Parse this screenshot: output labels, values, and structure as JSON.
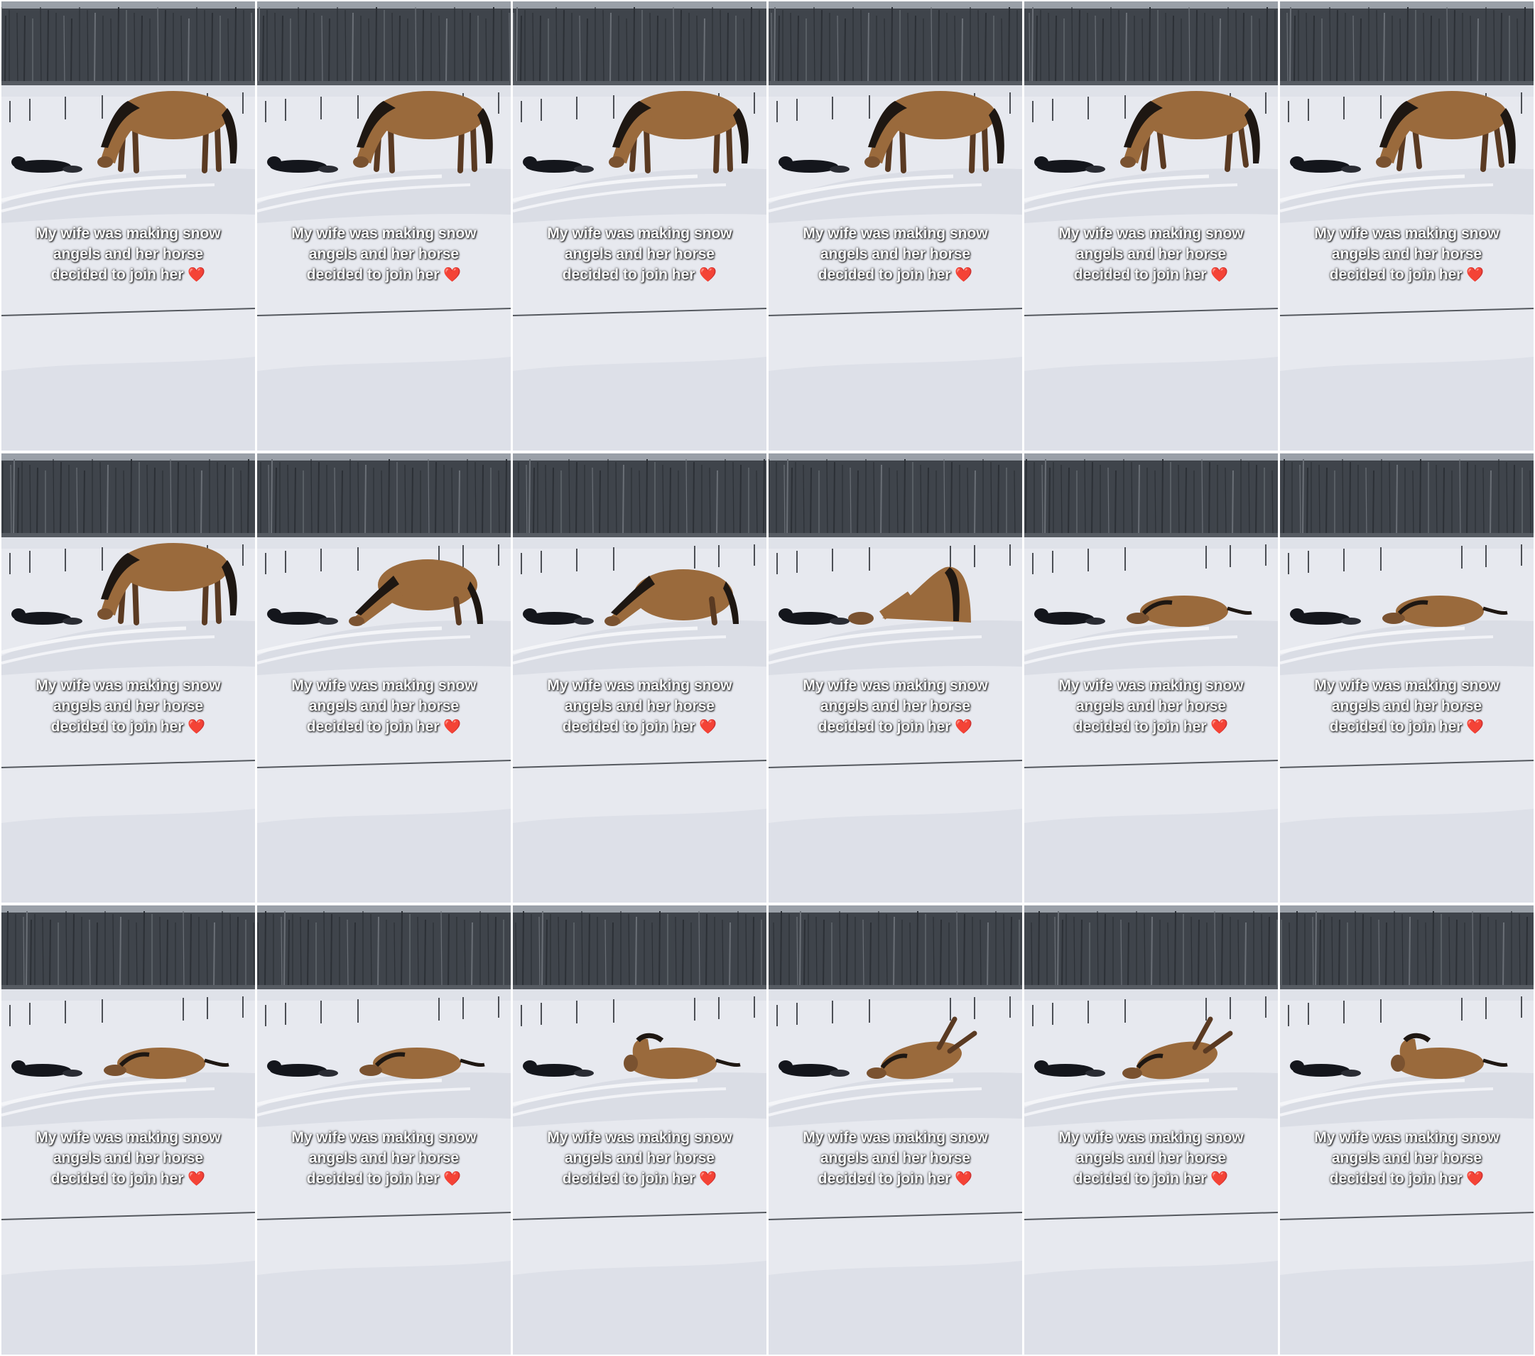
{
  "grid": {
    "rows": 3,
    "columns": 6
  },
  "caption": {
    "text": "My wife was making snow\nangels and her horse\ndecided to join her",
    "emoji": "❤️"
  },
  "colors": {
    "snow": "#e6e8ee",
    "trees": "#3a3f46",
    "horse": "#9a6a3c",
    "mane": "#1e1712",
    "person": "#14161c",
    "heart": "#e0202c"
  },
  "frames": [
    {
      "pose": "standing-sniffing"
    },
    {
      "pose": "standing-sniffing"
    },
    {
      "pose": "standing-sniffing"
    },
    {
      "pose": "standing-sniffing"
    },
    {
      "pose": "standing-pawing"
    },
    {
      "pose": "standing-pawing"
    },
    {
      "pose": "standing-sniffing"
    },
    {
      "pose": "kneeling"
    },
    {
      "pose": "kneeling-low"
    },
    {
      "pose": "lying-down-rear-up"
    },
    {
      "pose": "lying-down"
    },
    {
      "pose": "lying"
    },
    {
      "pose": "lying"
    },
    {
      "pose": "lying"
    },
    {
      "pose": "lying-head-up"
    },
    {
      "pose": "rolling"
    },
    {
      "pose": "rolling"
    },
    {
      "pose": "lying-head-up"
    }
  ]
}
